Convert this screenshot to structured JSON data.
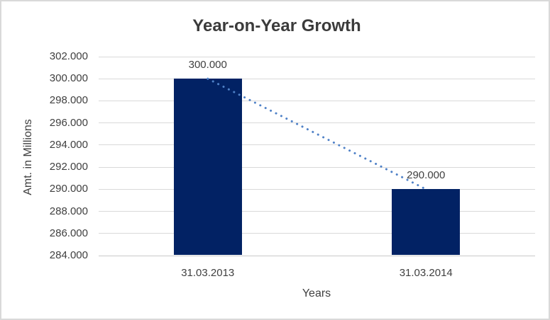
{
  "chart_data": {
    "type": "bar",
    "title": "Year-on-Year Growth",
    "xlabel": "Years",
    "ylabel": "Amt. in Millions",
    "categories": [
      "31.03.2013",
      "31.03.2014"
    ],
    "values": [
      300,
      290
    ],
    "value_labels": [
      "300.000",
      "290.000"
    ],
    "ylim": [
      284,
      302
    ],
    "ytick_values": [
      302,
      300,
      298,
      296,
      294,
      292,
      290,
      288,
      286,
      284
    ],
    "ytick_labels": [
      "302.000",
      "300.000",
      "298.000",
      "296.000",
      "294.000",
      "292.000",
      "290.000",
      "288.000",
      "286.000",
      "284.000"
    ],
    "grid": true,
    "legend": false,
    "bar_color": "#022264",
    "trendline": {
      "style": "dotted",
      "color": "#4F81C7",
      "from_value": 300,
      "to_value": 290
    }
  },
  "colors": {
    "background": "#FFFFFF",
    "border": "#D9D9D9",
    "gridline": "#D9D9D9",
    "axis_line": "#C9C9C9",
    "title_text": "#3B3B3B",
    "label_text": "#404040"
  }
}
